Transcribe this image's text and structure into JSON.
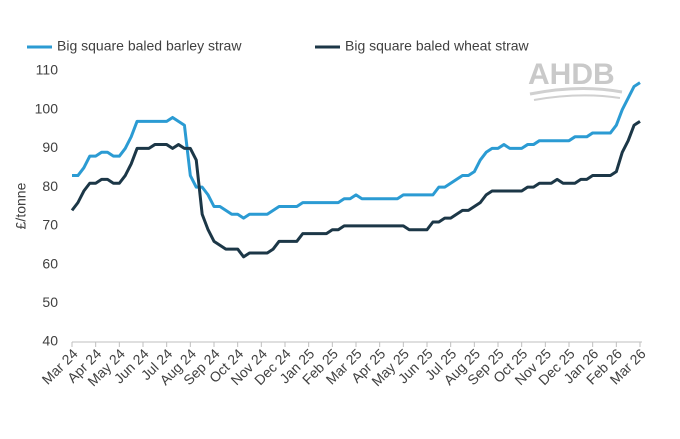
{
  "chart_data": {
    "type": "line",
    "y_label": "£/tonne",
    "logo": "AHDB",
    "categories": [
      "Mar 24",
      null,
      null,
      null,
      "Apr 24",
      null,
      null,
      null,
      "May 24",
      null,
      null,
      null,
      "Jun 24",
      null,
      null,
      null,
      "Jul 24",
      null,
      null,
      null,
      "Aug 24",
      null,
      null,
      null,
      "Sep 24",
      null,
      null,
      null,
      "Oct 24",
      null,
      null,
      null,
      "Nov 24",
      null,
      null,
      null,
      "Dec 24",
      null,
      null,
      null,
      "Jan 25",
      null,
      null,
      null,
      "Feb 25",
      null,
      null,
      null,
      "Mar 25",
      null,
      null,
      null,
      "Apr 25",
      null,
      null,
      null,
      "May 25",
      null,
      null,
      null,
      "Jun 25",
      null,
      null,
      null,
      "Jul 25",
      null,
      null,
      null,
      "Aug 25",
      null,
      null,
      null,
      "Sep 25",
      null,
      null,
      null,
      "Oct 25",
      null,
      null,
      null,
      "Nov 25",
      null,
      null,
      null,
      "Dec 25",
      null,
      null,
      null,
      "Jan 26",
      null,
      null,
      null,
      "Feb 26",
      null,
      null,
      null,
      "Mar 26"
    ],
    "series": [
      {
        "name": "Big square baled barley straw",
        "color": "#2b9bd3",
        "values": [
          83,
          83,
          85,
          88,
          88,
          89,
          89,
          88,
          88,
          90,
          93,
          97,
          97,
          97,
          97,
          97,
          97,
          98,
          97,
          96,
          83,
          80,
          80,
          78,
          75,
          75,
          74,
          73,
          73,
          72,
          73,
          73,
          73,
          73,
          74,
          75,
          75,
          75,
          75,
          76,
          76,
          76,
          76,
          76,
          76,
          76,
          77,
          77,
          78,
          77,
          77,
          77,
          77,
          77,
          77,
          77,
          78,
          78,
          78,
          78,
          78,
          78,
          80,
          80,
          81,
          82,
          83,
          83,
          84,
          87,
          89,
          90,
          90,
          91,
          90,
          90,
          90,
          91,
          91,
          92,
          92,
          92,
          92,
          92,
          92,
          93,
          93,
          93,
          94,
          94,
          94,
          94,
          96,
          100,
          103,
          106,
          107
        ]
      },
      {
        "name": "Big square baled wheat straw",
        "color": "#1c3747",
        "values": [
          74,
          76,
          79,
          81,
          81,
          82,
          82,
          81,
          81,
          83,
          86,
          90,
          90,
          90,
          91,
          91,
          91,
          90,
          91,
          90,
          90,
          87,
          73,
          69,
          66,
          65,
          64,
          64,
          64,
          62,
          63,
          63,
          63,
          63,
          64,
          66,
          66,
          66,
          66,
          68,
          68,
          68,
          68,
          68,
          69,
          69,
          70,
          70,
          70,
          70,
          70,
          70,
          70,
          70,
          70,
          70,
          70,
          69,
          69,
          69,
          69,
          71,
          71,
          72,
          72,
          73,
          74,
          74,
          75,
          76,
          78,
          79,
          79,
          79,
          79,
          79,
          79,
          80,
          80,
          81,
          81,
          81,
          82,
          81,
          81,
          81,
          82,
          82,
          83,
          83,
          83,
          83,
          84,
          89,
          92,
          96,
          97
        ]
      }
    ],
    "ylim": [
      40,
      110
    ],
    "yticks": [
      40,
      50,
      60,
      70,
      80,
      90,
      100,
      110
    ],
    "grid": false
  }
}
